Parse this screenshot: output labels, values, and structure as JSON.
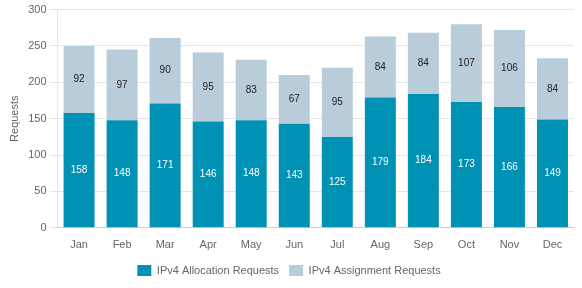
{
  "chart_data": {
    "type": "bar",
    "stacked": true,
    "categories": [
      "Jan",
      "Feb",
      "Mar",
      "Apr",
      "May",
      "Jun",
      "Jul",
      "Aug",
      "Sep",
      "Oct",
      "Nov",
      "Dec"
    ],
    "series": [
      {
        "name": "IPv4 Allocation Requests",
        "color": "#0092b5",
        "values": [
          158,
          148,
          171,
          146,
          148,
          143,
          125,
          179,
          184,
          173,
          166,
          149
        ]
      },
      {
        "name": "IPv4 Assignment Requests",
        "color": "#b8cdd9",
        "values": [
          92,
          97,
          90,
          95,
          83,
          67,
          95,
          84,
          84,
          107,
          106,
          84
        ]
      }
    ],
    "ylabel": "Requests",
    "ylim": [
      0,
      300
    ],
    "yticks": [
      0,
      50,
      100,
      150,
      200,
      250,
      300
    ],
    "grid": true,
    "legend": "bottom",
    "data_labels": true
  }
}
